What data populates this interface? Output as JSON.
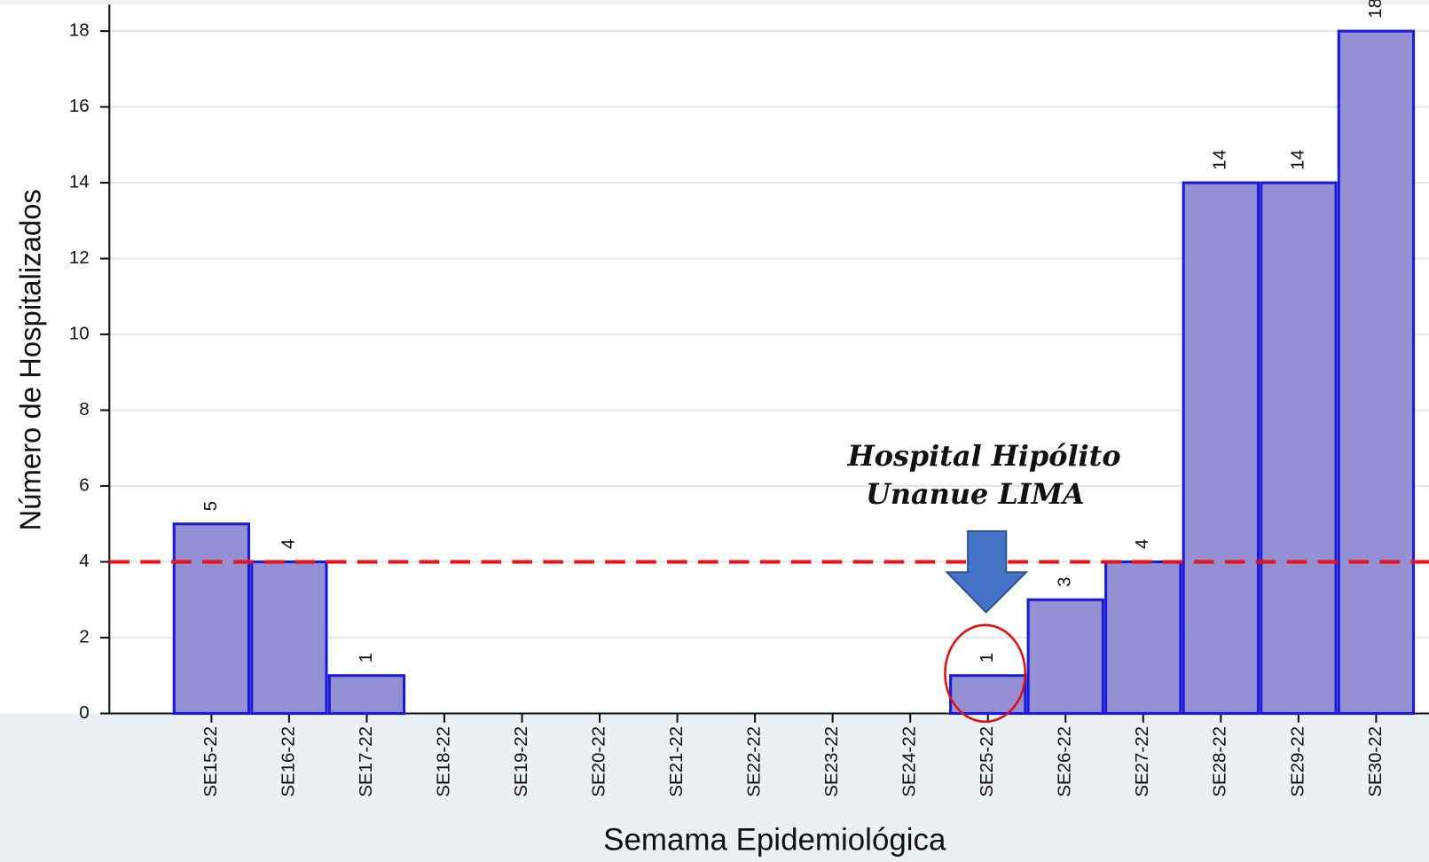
{
  "chart_data": {
    "type": "bar",
    "x_label": "Semama Epidemiológica",
    "y_label": "Número de Hospitalizados",
    "categories": [
      "SE15-22",
      "SE16-22",
      "SE17-22",
      "SE18-22",
      "SE19-22",
      "SE20-22",
      "SE21-22",
      "SE22-22",
      "SE23-22",
      "SE24-22",
      "SE25-22",
      "SE26-22",
      "SE27-22",
      "SE28-22",
      "SE29-22",
      "SE30-22"
    ],
    "values": [
      5,
      4,
      1,
      0,
      0,
      0,
      0,
      0,
      0,
      0,
      1,
      3,
      4,
      14,
      14,
      18
    ],
    "color": "#9590d4",
    "edge_color": "#1a1adb",
    "ylim": [
      0,
      18.7
    ],
    "yticks": [
      0,
      2,
      4,
      6,
      8,
      10,
      12,
      14,
      16,
      18
    ],
    "grid": true,
    "reference_line": {
      "value": 4,
      "color": "#e8141c",
      "style": "dashed"
    },
    "annotation": {
      "lines": [
        "Hospital Hipólito",
        "Unanue LIMA"
      ]
    }
  }
}
